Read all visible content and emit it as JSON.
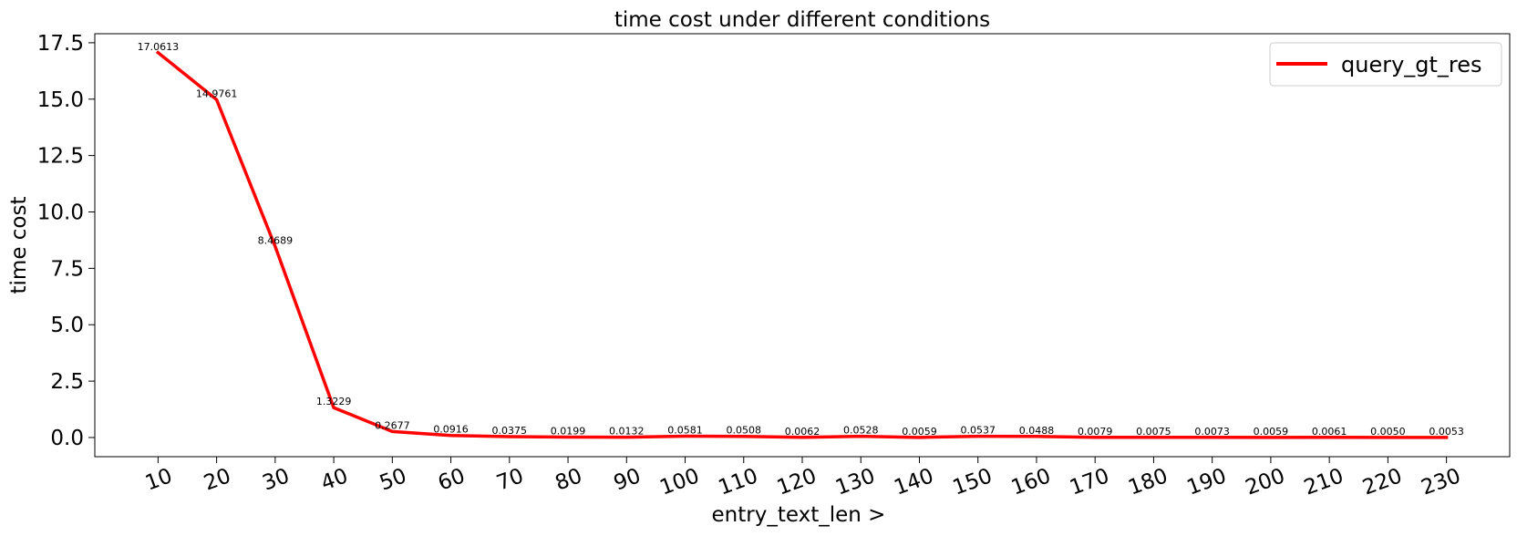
{
  "chart_data": {
    "type": "line",
    "title": "time cost under different conditions",
    "xlabel": "entry_text_len >",
    "ylabel": "time cost",
    "x": [
      10,
      20,
      30,
      40,
      50,
      60,
      70,
      80,
      90,
      100,
      110,
      120,
      130,
      140,
      150,
      160,
      170,
      180,
      190,
      200,
      210,
      220,
      230
    ],
    "y_ticks": [
      "0.0",
      "2.5",
      "5.0",
      "7.5",
      "10.0",
      "12.5",
      "15.0",
      "17.5"
    ],
    "ylim": [
      -0.85,
      17.9
    ],
    "xlim": [
      -0.8,
      240.8
    ],
    "grid": false,
    "legend_position": "top-right",
    "series": [
      {
        "name": "query_gt_res",
        "color": "#ff0000",
        "values": [
          17.0613,
          14.9761,
          8.4689,
          1.3229,
          0.2677,
          0.0916,
          0.0375,
          0.0199,
          0.0132,
          0.0581,
          0.0508,
          0.0062,
          0.0528,
          0.0059,
          0.0537,
          0.0488,
          0.0079,
          0.0075,
          0.0073,
          0.0059,
          0.0061,
          0.005,
          0.0053
        ],
        "labels": [
          "17.0613",
          "14.9761",
          "8.4689",
          "1.3229",
          "0.2677",
          "0.0916",
          "0.0375",
          "0.0199",
          "0.0132",
          "0.0581",
          "0.0508",
          "0.0062",
          "0.0528",
          "0.0059",
          "0.0537",
          "0.0488",
          "0.0079",
          "0.0075",
          "0.0073",
          "0.0059",
          "0.0061",
          "0.0050",
          "0.0053"
        ]
      }
    ]
  }
}
